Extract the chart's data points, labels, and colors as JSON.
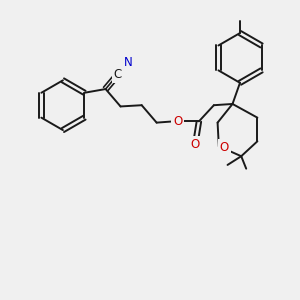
{
  "bg_color": "#f0f0f0",
  "bond_color": "#1a1a1a",
  "nitrogen_color": "#0000cc",
  "oxygen_color": "#cc0000",
  "font_size_label": 8.5,
  "line_width": 1.4,
  "figsize": [
    3.0,
    3.0
  ],
  "dpi": 100,
  "xlim": [
    0,
    12
  ],
  "ylim": [
    0,
    12
  ]
}
